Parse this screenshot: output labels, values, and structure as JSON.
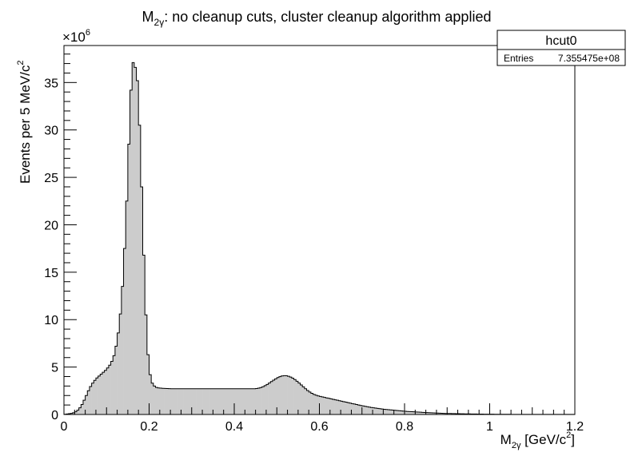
{
  "chart_data": {
    "type": "bar",
    "title_main": "M",
    "title_sub": "2γ",
    "title_rest": ": no cleanup cuts, cluster cleanup algorithm applied",
    "xlabel_main": "M",
    "xlabel_sub": "2γ",
    "xlabel_rest": " [GeV/c",
    "xlabel_sup": "2",
    "xlabel_end": "]",
    "ylabel_main": "Events per 5 MeV/c",
    "ylabel_sup": "2",
    "y_multiplier_base": "×10",
    "y_multiplier_exp": "6",
    "xlim": [
      0,
      1.2
    ],
    "ylim": [
      0,
      38.9
    ],
    "x_ticks": [
      "0",
      "0.2",
      "0.4",
      "0.6",
      "0.8",
      "1",
      "1.2"
    ],
    "y_ticks": [
      "0",
      "5",
      "10",
      "15",
      "20",
      "25",
      "30",
      "35"
    ],
    "bin_width": 0.005,
    "fill_color": "#cccccc",
    "line_color": "#000000",
    "stats_box": {
      "name": "hcut0",
      "entries_label": "Entries",
      "entries_value": "7.355475e+08"
    },
    "values": [
      0.02,
      0.05,
      0.08,
      0.12,
      0.18,
      0.28,
      0.45,
      0.7,
      1.05,
      1.5,
      2.0,
      2.5,
      2.95,
      3.3,
      3.6,
      3.85,
      4.05,
      4.25,
      4.45,
      4.65,
      4.9,
      5.2,
      5.6,
      6.2,
      7.2,
      8.6,
      10.6,
      13.5,
      17.5,
      22.5,
      28.5,
      34.2,
      37.1,
      36.6,
      35.2,
      30.5,
      24.0,
      16.8,
      10.5,
      6.3,
      4.2,
      3.3,
      3.0,
      2.85,
      2.8,
      2.78,
      2.76,
      2.75,
      2.74,
      2.73,
      2.72,
      2.72,
      2.72,
      2.72,
      2.72,
      2.72,
      2.72,
      2.72,
      2.72,
      2.72,
      2.72,
      2.72,
      2.72,
      2.72,
      2.72,
      2.72,
      2.72,
      2.72,
      2.72,
      2.72,
      2.72,
      2.72,
      2.72,
      2.72,
      2.72,
      2.72,
      2.72,
      2.72,
      2.72,
      2.72,
      2.72,
      2.72,
      2.72,
      2.72,
      2.72,
      2.72,
      2.72,
      2.72,
      2.72,
      2.72,
      2.74,
      2.78,
      2.84,
      2.93,
      3.04,
      3.17,
      3.32,
      3.47,
      3.62,
      3.76,
      3.89,
      3.99,
      4.06,
      4.09,
      4.08,
      4.03,
      3.95,
      3.83,
      3.68,
      3.51,
      3.32,
      3.12,
      2.92,
      2.72,
      2.53,
      2.37,
      2.23,
      2.12,
      2.03,
      1.96,
      1.9,
      1.85,
      1.8,
      1.75,
      1.7,
      1.65,
      1.6,
      1.55,
      1.5,
      1.45,
      1.4,
      1.35,
      1.3,
      1.25,
      1.2,
      1.15,
      1.1,
      1.05,
      1.0,
      0.95,
      0.9,
      0.86,
      0.82,
      0.78,
      0.74,
      0.7,
      0.67,
      0.64,
      0.61,
      0.58,
      0.55,
      0.53,
      0.5,
      0.48,
      0.46,
      0.44,
      0.42,
      0.4,
      0.38,
      0.36,
      0.34,
      0.32,
      0.31,
      0.29,
      0.28,
      0.26,
      0.25,
      0.24,
      0.22,
      0.21,
      0.2,
      0.19,
      0.18,
      0.17,
      0.16,
      0.15,
      0.14,
      0.13,
      0.12,
      0.11,
      0.1,
      0.1,
      0.09,
      0.09,
      0.08,
      0.08,
      0.07,
      0.07,
      0.06,
      0.06,
      0.06,
      0.05,
      0.05,
      0.05,
      0.04,
      0.04,
      0.04,
      0.03,
      0.03,
      0.03,
      0.03,
      0.03,
      0.02,
      0.02,
      0.02,
      0.02,
      0.02,
      0.02,
      0.02,
      0.02,
      0.01,
      0.01,
      0.01,
      0.01,
      0.01,
      0.01,
      0.01,
      0.01,
      0.01,
      0.01,
      0.01,
      0.01,
      0.01,
      0.01,
      0.01,
      0.01,
      0.01,
      0.01,
      0.01,
      0.01,
      0.01,
      0.01,
      0.01,
      0.01,
      0.01,
      0.01,
      0.01,
      0.01,
      0.01,
      0.01
    ]
  }
}
